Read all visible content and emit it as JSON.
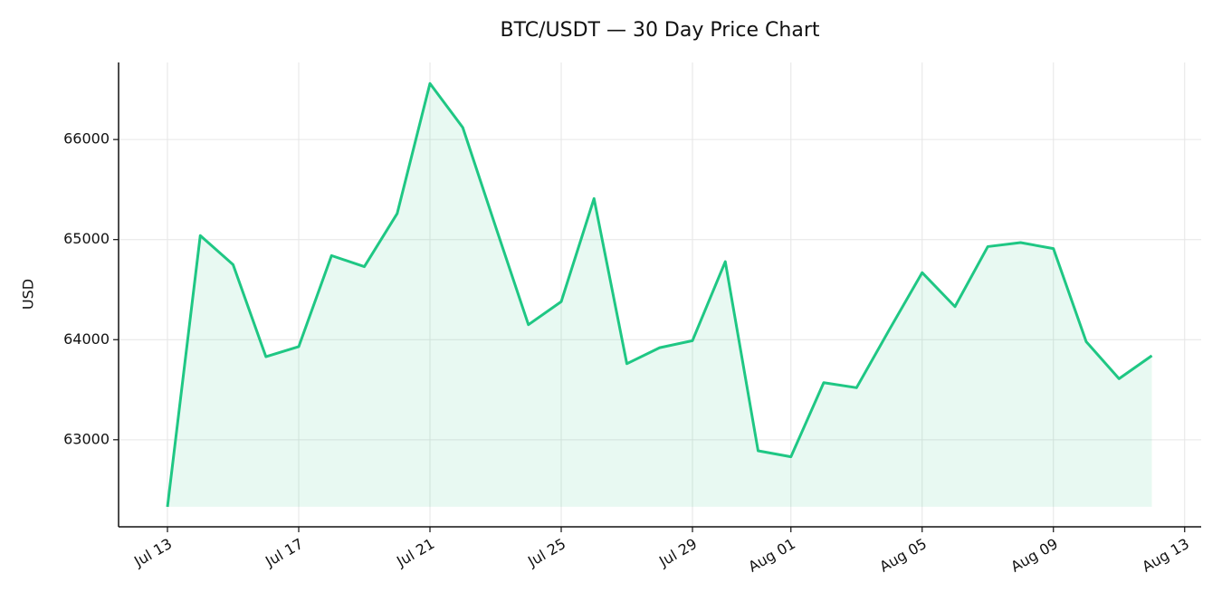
{
  "chart_data": {
    "type": "line",
    "title": "BTC/USDT — 30 Day Price Chart",
    "y_label": "USD",
    "x": [
      "Jul 13",
      "Jul 14",
      "Jul 15",
      "Jul 16",
      "Jul 17",
      "Jul 18",
      "Jul 19",
      "Jul 20",
      "Jul 21",
      "Jul 22",
      "Jul 23",
      "Jul 24",
      "Jul 25",
      "Jul 26",
      "Jul 27",
      "Jul 28",
      "Jul 29",
      "Jul 30",
      "Jul 31",
      "Aug 01",
      "Aug 02",
      "Aug 03",
      "Aug 04",
      "Aug 05",
      "Aug 06",
      "Aug 07",
      "Aug 08",
      "Aug 09",
      "Aug 10",
      "Aug 11",
      "Aug 12"
    ],
    "values": [
      62330,
      65040,
      64750,
      63830,
      63930,
      64840,
      64730,
      65260,
      66560,
      66120,
      65130,
      64150,
      64380,
      65410,
      63760,
      63920,
      63990,
      64780,
      62890,
      62830,
      63570,
      63520,
      64100,
      64670,
      64330,
      64930,
      64970,
      64910,
      63980,
      63610,
      63840
    ],
    "color": "#1fc784",
    "fill": true,
    "xticks": [
      "Jul 13",
      "Jul 17",
      "Jul 21",
      "Jul 25",
      "Jul 29",
      "Aug 01",
      "Aug 05",
      "Aug 09",
      "Aug 13"
    ],
    "ylim": [
      62130,
      66770
    ],
    "yticks": [
      63000,
      64000,
      65000,
      66000
    ],
    "grid": true
  }
}
